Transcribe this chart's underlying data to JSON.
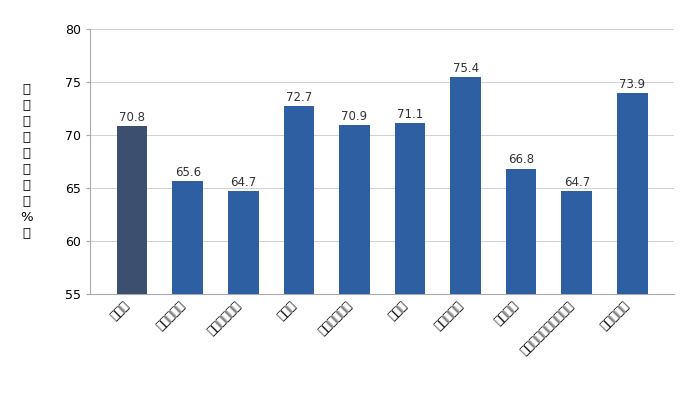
{
  "categories": [
    "全産業",
    "農林水産業",
    "鉱業・建設業",
    "製造業",
    "電気・ガス業",
    "運輸業",
    "情報通信業",
    "卖小売業",
    "金融・保険・不動産業",
    "サービス業"
  ],
  "values": [
    70.8,
    65.6,
    64.7,
    72.7,
    70.9,
    71.1,
    75.4,
    66.8,
    64.7,
    73.9
  ],
  "bar_colors": [
    "#3d4f6e",
    "#2e5fa3",
    "#2e5fa3",
    "#2e5fa3",
    "#2e5fa3",
    "#2e5fa3",
    "#2e5fa3",
    "#2e5fa3",
    "#2e5fa3",
    "#2e5fa3"
  ],
  "ylabel_chars": [
    "男",
    "女",
    "の",
    "賞",
    "金",
    "格",
    "差",
    "（",
    "%",
    "）"
  ],
  "ylim": [
    55,
    80
  ],
  "yticks": [
    55,
    60,
    65,
    70,
    75,
    80
  ],
  "background_color": "#ffffff",
  "grid_color": "#d0d0d0",
  "label_fontsize": 8.5,
  "value_fontsize": 8.5,
  "ylabel_fontsize": 9.5
}
